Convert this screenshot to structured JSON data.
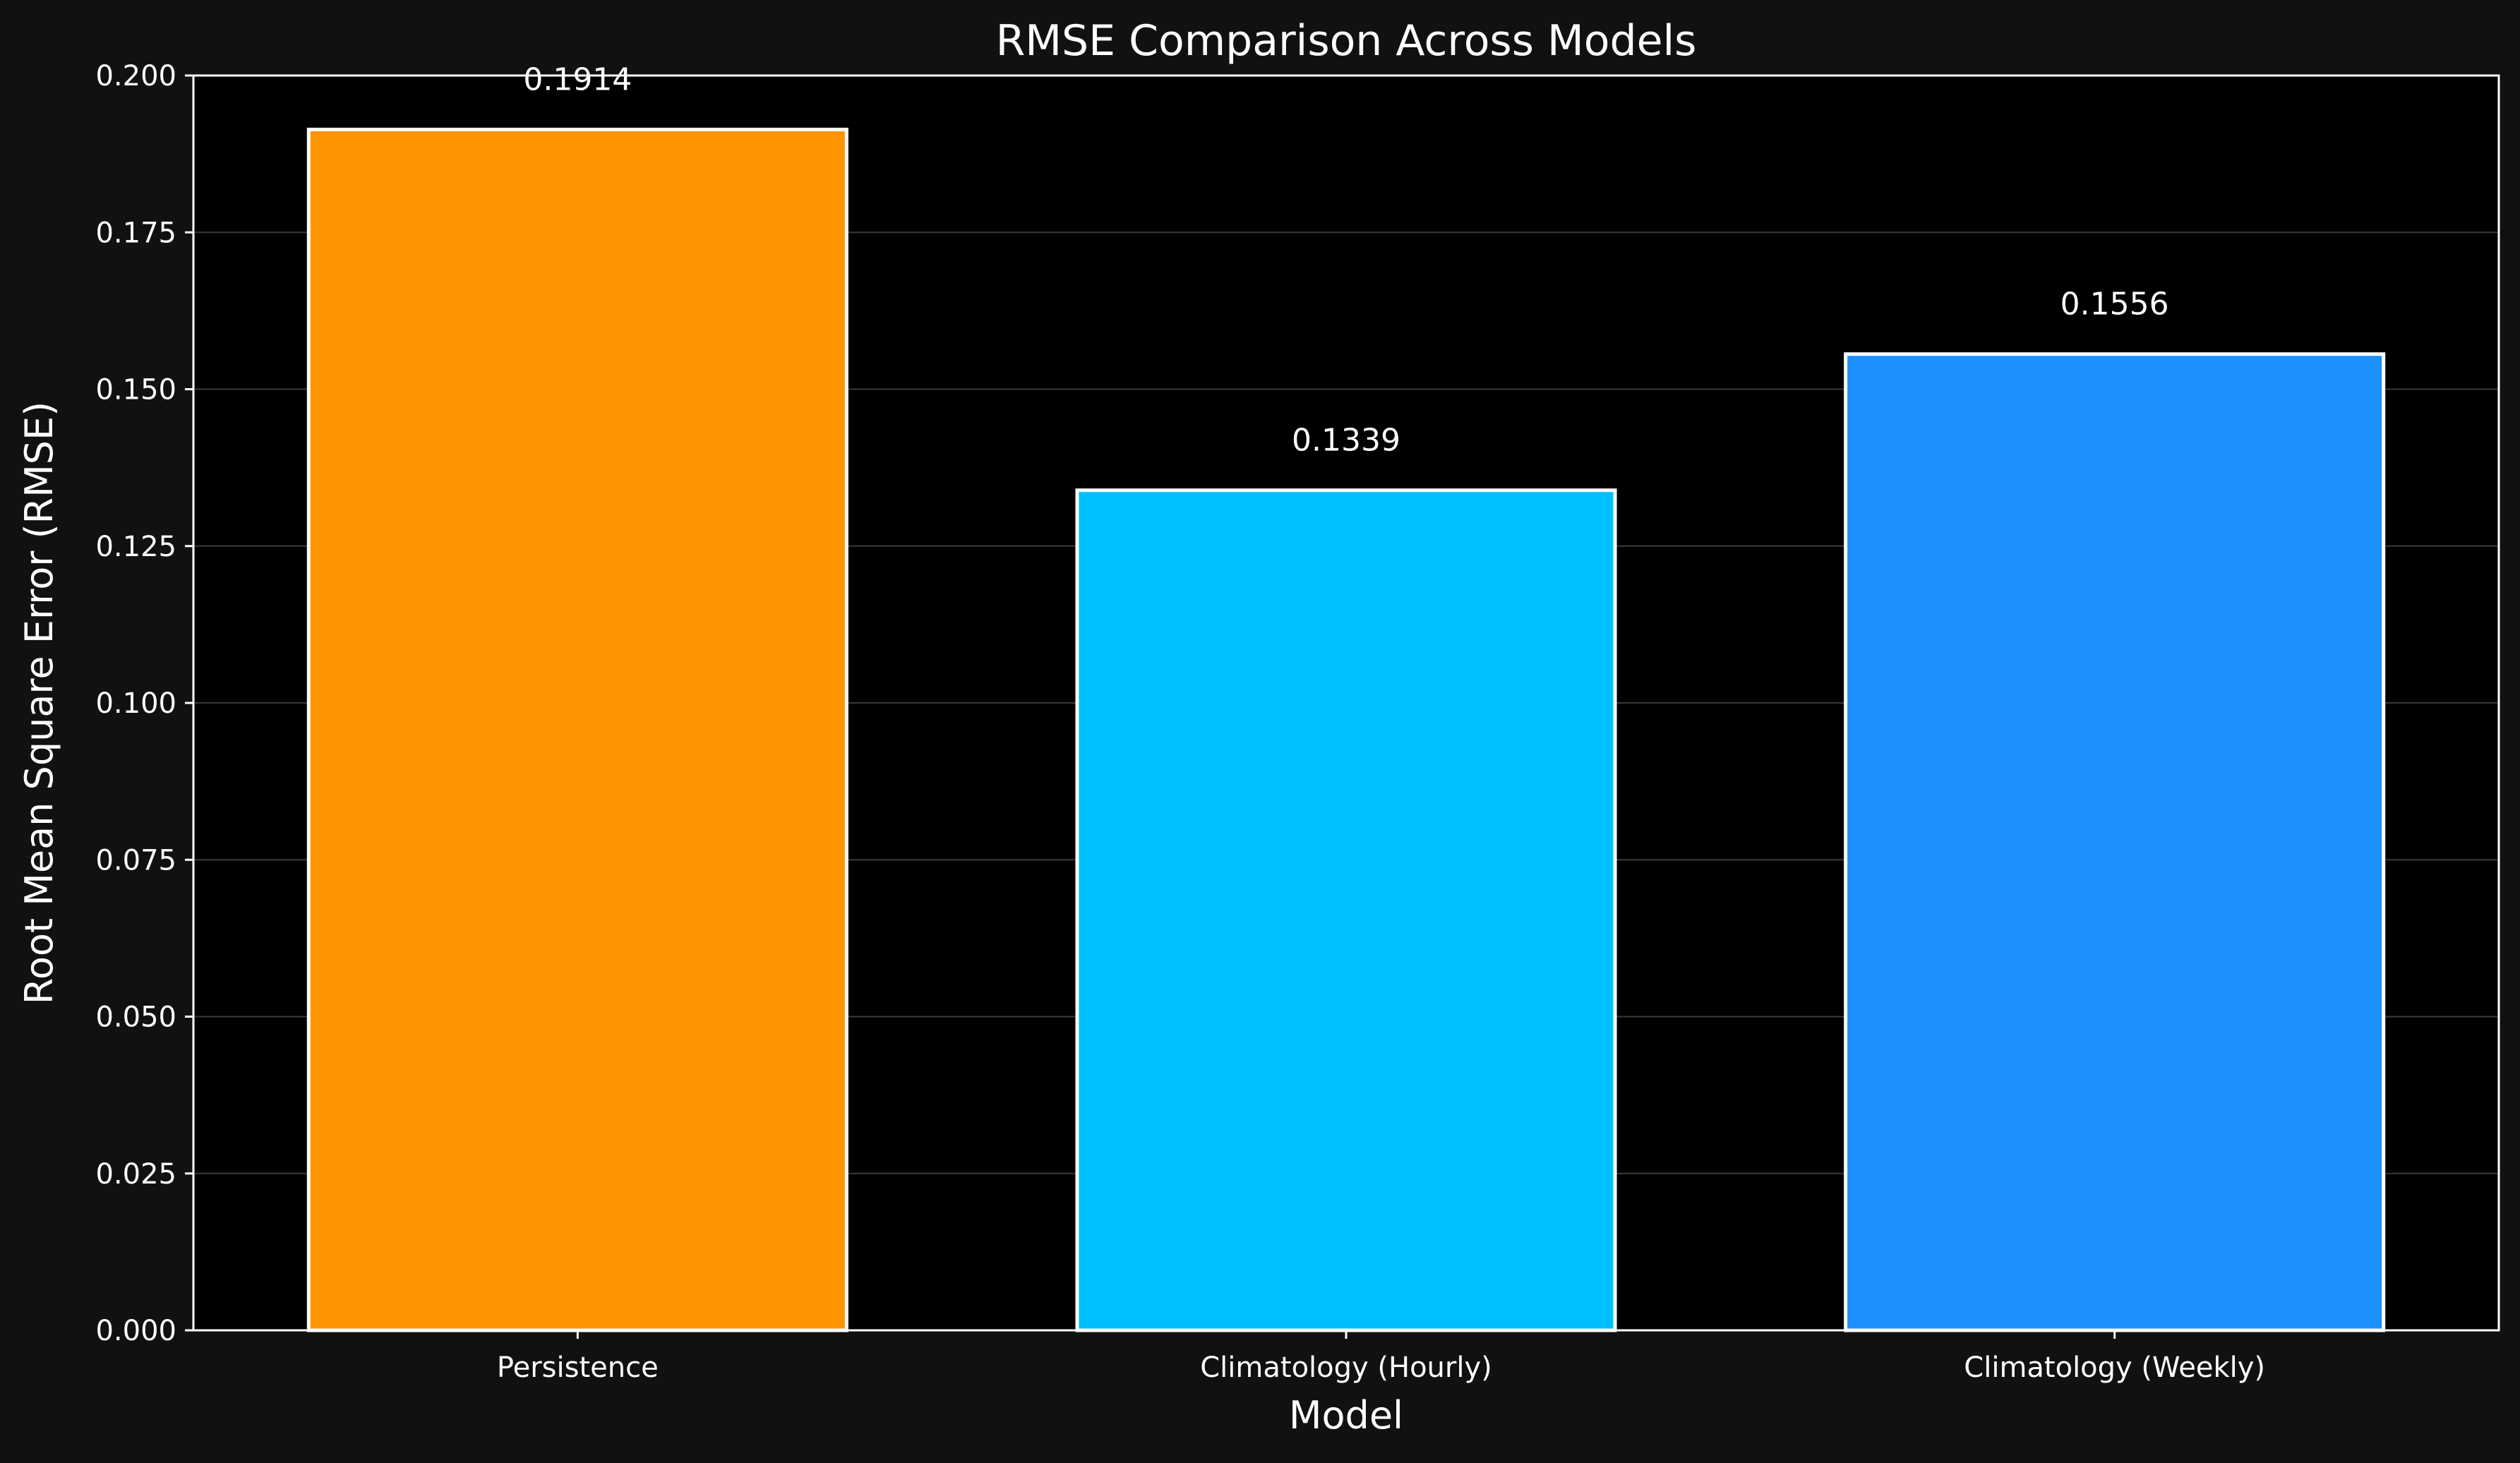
{
  "chart_data": {
    "type": "bar",
    "title": "RMSE Comparison Across Models",
    "xlabel": "Model",
    "ylabel": "Root Mean Square Error (RMSE)",
    "categories": [
      "Persistence",
      "Climatology (Hourly)",
      "Climatology (Weekly)"
    ],
    "values": [
      0.1914,
      0.1339,
      0.1556
    ],
    "value_labels": [
      "0.1914",
      "0.1339",
      "0.1556"
    ],
    "ylim": [
      0,
      0.2
    ],
    "yticks": [
      0.0,
      0.025,
      0.05,
      0.075,
      0.1,
      0.125,
      0.15,
      0.175,
      0.2
    ],
    "ytick_labels": [
      "0.000",
      "0.025",
      "0.050",
      "0.075",
      "0.100",
      "0.125",
      "0.150",
      "0.175",
      "0.200"
    ],
    "bar_colors": [
      "#ff9500",
      "#00bfff",
      "#1e90ff"
    ],
    "bar_edge_color": "#ffffff",
    "grid": true,
    "background": "#000000",
    "figure_background": "#111111",
    "legend": "none"
  }
}
